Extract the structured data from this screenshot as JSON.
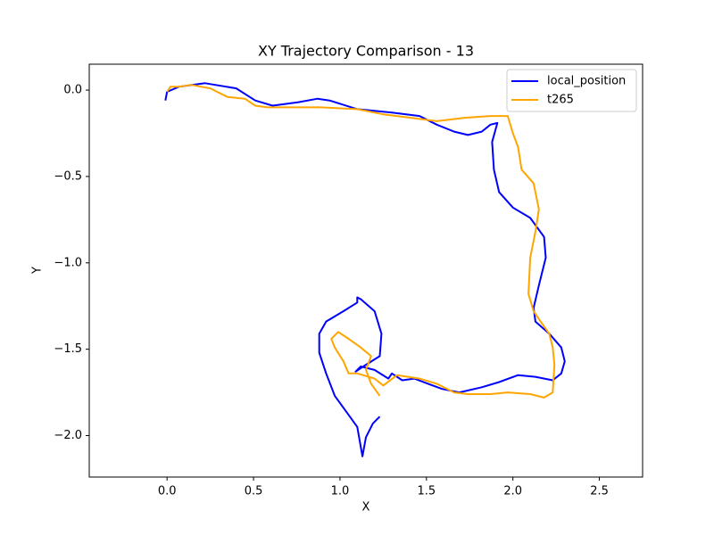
{
  "chart_data": {
    "type": "line",
    "title": "XY Trajectory Comparison - 13",
    "x_label": "X",
    "y_label": "Y",
    "xlim": [
      -0.45,
      2.75
    ],
    "ylim": [
      -2.24,
      0.15
    ],
    "xticks": [
      {
        "value": 0,
        "label": "0.0"
      },
      {
        "value": 0.5,
        "label": "0.5"
      },
      {
        "value": 1,
        "label": "1.0"
      },
      {
        "value": 1.5,
        "label": "1.5"
      },
      {
        "value": 2,
        "label": "2.0"
      },
      {
        "value": 2.5,
        "label": "2.5"
      }
    ],
    "yticks": [
      {
        "value": 0,
        "label": "0.0"
      },
      {
        "value": -0.5,
        "label": "−0.5"
      },
      {
        "value": -1,
        "label": "−1.0"
      },
      {
        "value": -1.5,
        "label": "−1.5"
      },
      {
        "value": -2,
        "label": "−2.0"
      }
    ],
    "legend": "upper right",
    "grid": false,
    "series": [
      {
        "name": "local_position",
        "color": "#0000ff",
        "x": [
          -0.01,
          0.0,
          0.07,
          0.22,
          0.4,
          0.51,
          0.61,
          0.76,
          0.87,
          0.94,
          1.1,
          1.3,
          1.46,
          1.56,
          1.66,
          1.74,
          1.82,
          1.87,
          1.91,
          1.88,
          1.89,
          1.92,
          2.0,
          2.1,
          2.18,
          2.19,
          2.15,
          2.12,
          2.13,
          2.21,
          2.28,
          2.3,
          2.28,
          2.23,
          2.13,
          2.03,
          1.92,
          1.82,
          1.69,
          1.59,
          1.51,
          1.43,
          1.36,
          1.3,
          1.28,
          1.2,
          1.12,
          1.09,
          1.15,
          1.23,
          1.24,
          1.2,
          1.12,
          1.1,
          1.1,
          1.02,
          0.92,
          0.88,
          0.88,
          0.92,
          0.97,
          1.05,
          1.1,
          1.13,
          1.15,
          1.19,
          1.23
        ],
        "values": [
          -0.06,
          -0.01,
          0.02,
          0.04,
          0.01,
          -0.06,
          -0.09,
          -0.07,
          -0.05,
          -0.06,
          -0.11,
          -0.13,
          -0.15,
          -0.2,
          -0.24,
          -0.26,
          -0.24,
          -0.2,
          -0.19,
          -0.3,
          -0.46,
          -0.59,
          -0.68,
          -0.74,
          -0.85,
          -0.97,
          -1.13,
          -1.26,
          -1.34,
          -1.41,
          -1.49,
          -1.57,
          -1.64,
          -1.68,
          -1.66,
          -1.65,
          -1.69,
          -1.72,
          -1.75,
          -1.73,
          -1.7,
          -1.67,
          -1.68,
          -1.64,
          -1.67,
          -1.62,
          -1.6,
          -1.63,
          -1.59,
          -1.54,
          -1.41,
          -1.28,
          -1.21,
          -1.2,
          -1.23,
          -1.28,
          -1.34,
          -1.41,
          -1.52,
          -1.64,
          -1.77,
          -1.88,
          -1.95,
          -2.12,
          -2.01,
          -1.93,
          -1.89
        ]
      },
      {
        "name": "t265",
        "color": "#ffa500",
        "x": [
          0.0,
          0.02,
          0.07,
          0.14,
          0.25,
          0.35,
          0.45,
          0.51,
          0.58,
          0.74,
          0.89,
          1.1,
          1.25,
          1.41,
          1.56,
          1.72,
          1.87,
          1.97,
          2.0,
          2.03,
          2.05,
          2.12,
          2.15,
          2.13,
          2.1,
          2.09,
          2.12,
          2.16,
          2.21,
          2.23,
          2.24,
          2.23,
          2.18,
          2.1,
          1.97,
          1.87,
          1.74,
          1.66,
          1.56,
          1.46,
          1.33,
          1.25,
          1.2,
          1.1,
          1.05,
          1.02,
          0.97,
          0.95,
          0.99,
          1.05,
          1.12,
          1.18,
          1.15,
          1.18,
          1.23
        ],
        "values": [
          -0.01,
          0.02,
          0.02,
          0.03,
          0.01,
          -0.04,
          -0.05,
          -0.09,
          -0.1,
          -0.1,
          -0.1,
          -0.11,
          -0.14,
          -0.16,
          -0.18,
          -0.16,
          -0.15,
          -0.15,
          -0.25,
          -0.33,
          -0.46,
          -0.54,
          -0.69,
          -0.82,
          -0.97,
          -1.18,
          -1.28,
          -1.34,
          -1.41,
          -1.49,
          -1.59,
          -1.75,
          -1.78,
          -1.76,
          -1.75,
          -1.76,
          -1.76,
          -1.75,
          -1.7,
          -1.67,
          -1.65,
          -1.71,
          -1.67,
          -1.64,
          -1.64,
          -1.57,
          -1.49,
          -1.44,
          -1.4,
          -1.44,
          -1.49,
          -1.54,
          -1.62,
          -1.7,
          -1.77
        ]
      }
    ]
  }
}
